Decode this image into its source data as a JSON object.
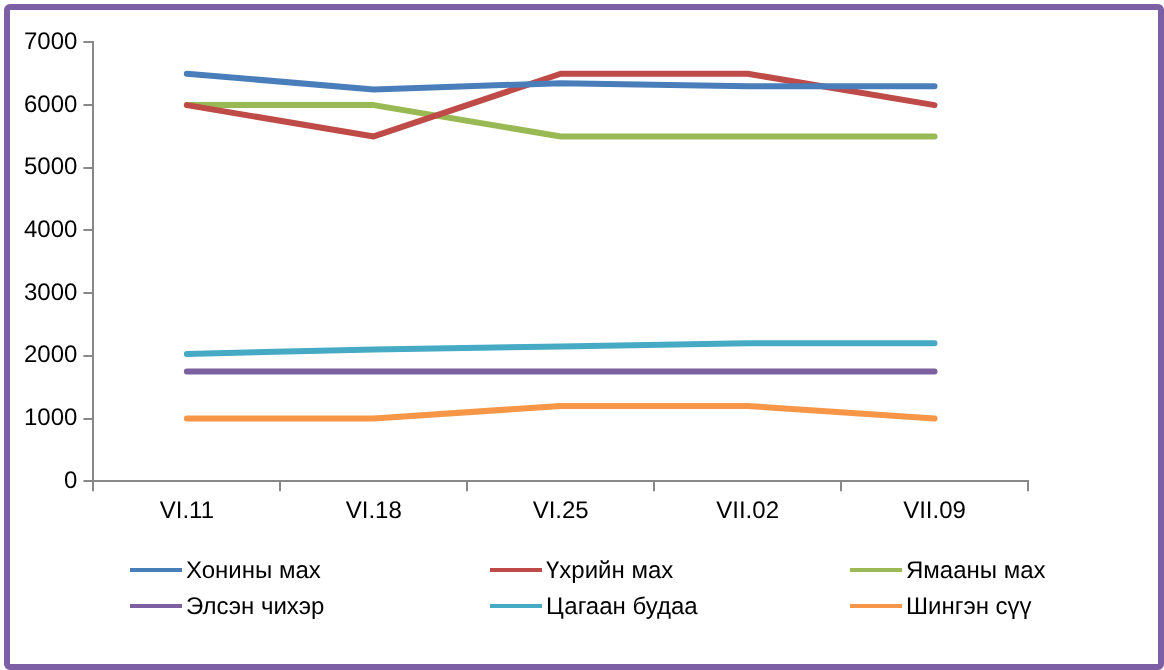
{
  "chart_data": {
    "type": "line",
    "categories": [
      "VI.11",
      "VI.18",
      "VI.25",
      "VII.02",
      "VII.09"
    ],
    "series": [
      {
        "name": "Хонины мах",
        "color": "#4a7ebb",
        "values": [
          6500,
          6250,
          6350,
          6300,
          6300
        ]
      },
      {
        "name": "Үхрийн мах",
        "color": "#be4b48",
        "values": [
          6000,
          5500,
          6500,
          6500,
          6000
        ]
      },
      {
        "name": "Ямааны мах",
        "color": "#98b954",
        "values": [
          6000,
          6000,
          5500,
          5500,
          5500
        ]
      },
      {
        "name": "Элсэн чихэр",
        "color": "#7d60a0",
        "values": [
          1750,
          1750,
          1750,
          1750,
          1750
        ]
      },
      {
        "name": "Цагаан будаа",
        "color": "#46aac5",
        "values": [
          2030,
          2100,
          2150,
          2200,
          2200
        ]
      },
      {
        "name": "Шингэн сүү",
        "color": "#f79646",
        "values": [
          1000,
          1000,
          1200,
          1200,
          1000
        ]
      }
    ],
    "ylim": [
      0,
      7000
    ],
    "yticks": [
      0,
      1000,
      2000,
      3000,
      4000,
      5000,
      6000,
      7000
    ],
    "grid": false,
    "legend": "bottom",
    "marker": "none",
    "line_style": "solid"
  }
}
